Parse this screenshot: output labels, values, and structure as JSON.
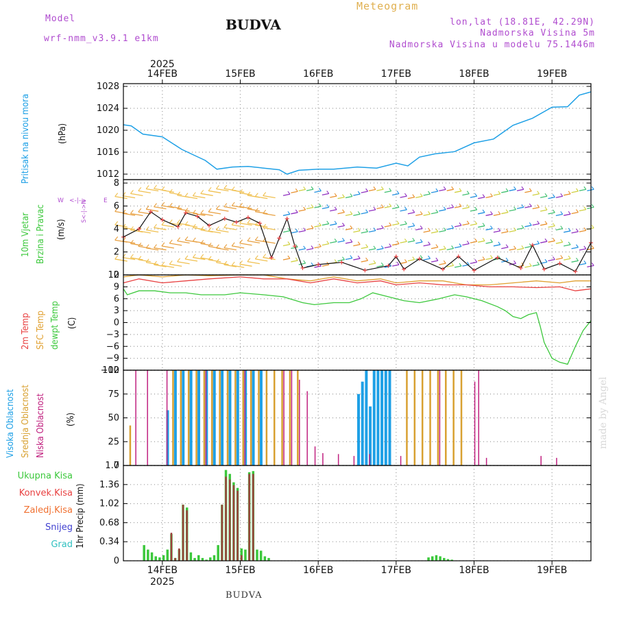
{
  "header": {
    "model_label": "Model",
    "model_name": "wrf-nmm_v3.9.1 e1km",
    "station": "BUDVA",
    "meteogram": "Meteogram",
    "lonlat": "lon,lat (18.81E, 42.29N)",
    "elevation": "Nadmorska Visina 5m",
    "model_elevation": "Nadmorska Visina u modelu 75.1446m"
  },
  "footer": {
    "station": "BUDVA",
    "credit": "made by Angel"
  },
  "colors": {
    "pressure": "#1ea0e6",
    "temp2m": "#e84040",
    "tsfc": "#e0a030",
    "dewpoint": "#3cc83c",
    "cloud_high": "#1ea0e6",
    "cloud_mid": "#d8a030",
    "cloud_low": "#c0207f",
    "precip_total": "#3cc83c",
    "precip_conv": "#a04040",
    "snow": "#4040d0",
    "graupel": "#30c0c0"
  },
  "panels": {
    "pressure": {
      "label": "Pritisak na nivou mora",
      "unit": "(hPa)"
    },
    "wind": {
      "label1": "10m Vjetar",
      "label2": "Brzina i Pravac",
      "unit": "(m/s)",
      "compass_w": "W",
      "compass_e": "E",
      "compass_arrows": "<-|->",
      "compass_n": "N",
      "compass_s": "S"
    },
    "temp": {
      "label_2m": "2m Temp",
      "label_sfc": "SFC Temp",
      "label_dew": "dewpt Temp",
      "unit": "(C)"
    },
    "cloud": {
      "label_high": "Visoka Oblacnost",
      "label_mid": "Srednja Oblacnost",
      "label_low": "Niska Oblacnost",
      "unit": "(%)"
    },
    "precip": {
      "unit": "1hr Precip (mm)",
      "legend": [
        "Ukupna Kisa",
        "Konvek.Kisa",
        "Zaledj.Kisa",
        "Snijeg",
        "Grad"
      ]
    }
  },
  "chart_data": [
    {
      "type": "line",
      "title": "Pritisak na nivou mora",
      "ylabel": "(hPa)",
      "ylim": [
        1011,
        1028.5
      ],
      "yticks": [
        1012,
        1016,
        1020,
        1024,
        1028
      ],
      "time_axis": {
        "year": "2025",
        "ticks": [
          "14FEB",
          "15FEB",
          "16FEB",
          "17FEB",
          "18FEB",
          "19FEB"
        ],
        "span_days": [
          13.5,
          19.5
        ]
      },
      "grid": true,
      "series": [
        {
          "name": "Pritisak na nivou mora",
          "x": [
            13.5,
            13.6,
            13.75,
            14.0,
            14.25,
            14.4,
            14.55,
            14.7,
            14.9,
            15.1,
            15.3,
            15.5,
            15.6,
            15.75,
            16.0,
            16.2,
            16.5,
            16.75,
            17.0,
            17.15,
            17.3,
            17.5,
            17.75,
            18.0,
            18.25,
            18.5,
            18.75,
            19.0,
            19.2,
            19.35,
            19.5
          ],
          "values": [
            1021,
            1020.8,
            1019.3,
            1018.8,
            1016.5,
            1015.5,
            1014.5,
            1012.9,
            1013.3,
            1013.4,
            1013.1,
            1012.8,
            1012,
            1012.7,
            1012.9,
            1012.9,
            1013.3,
            1013.1,
            1014,
            1013.5,
            1015.1,
            1015.7,
            1016.1,
            1017.7,
            1018.4,
            1020.9,
            1022.2,
            1024.2,
            1024.3,
            1026.4,
            1027
          ]
        }
      ]
    },
    {
      "type": "line",
      "title": "10m Vjetar Brzina i Pravac",
      "ylabel": "(m/s)",
      "ylim": [
        0,
        8.3
      ],
      "yticks": [
        0,
        2,
        4,
        6,
        8
      ],
      "grid": true,
      "series": [
        {
          "name": "10m Vjetar",
          "x": [
            13.5,
            13.7,
            13.85,
            14.0,
            14.2,
            14.3,
            14.45,
            14.6,
            14.8,
            14.95,
            15.1,
            15.25,
            15.4,
            15.5,
            15.6,
            15.7,
            15.8,
            16.0,
            16.3,
            16.6,
            16.9,
            17.0,
            17.1,
            17.3,
            17.6,
            17.8,
            18.0,
            18.3,
            18.6,
            18.75,
            18.9,
            19.1,
            19.3,
            19.5
          ],
          "values": [
            3.3,
            4.0,
            5.5,
            4.8,
            4.2,
            5.4,
            5.1,
            4.3,
            4.9,
            4.6,
            5.0,
            4.5,
            1.5,
            3.2,
            4.9,
            2.5,
            0.6,
            0.9,
            1.1,
            0.4,
            0.8,
            1.6,
            0.5,
            1.4,
            0.5,
            1.6,
            0.4,
            1.5,
            0.6,
            2.6,
            0.5,
            1.0,
            0.3,
            2.8
          ]
        }
      ]
    },
    {
      "type": "line",
      "ylabel": "(C)",
      "ylim": [
        -12,
        12
      ],
      "yticks": [
        -12,
        -9,
        -6,
        -3,
        0,
        3,
        6,
        9,
        12
      ],
      "grid": true,
      "series": [
        {
          "name": "2m Temp",
          "x": [
            13.5,
            13.7,
            14.0,
            14.3,
            14.6,
            15.0,
            15.3,
            15.6,
            15.9,
            16.2,
            16.5,
            16.8,
            17.0,
            17.3,
            17.6,
            17.9,
            18.2,
            18.5,
            18.8,
            19.1,
            19.3,
            19.5
          ],
          "values": [
            10,
            11,
            10,
            10.5,
            11,
            11.5,
            11,
            11,
            10,
            11,
            10,
            10.5,
            9.5,
            10,
            9.5,
            9.5,
            9,
            9,
            8.8,
            9,
            8,
            8.5
          ]
        },
        {
          "name": "SFC Temp",
          "x": [
            13.5,
            13.7,
            14.0,
            14.3,
            14.6,
            15.0,
            15.3,
            15.6,
            15.9,
            16.2,
            16.5,
            16.8,
            17.0,
            17.3,
            17.6,
            17.9,
            18.2,
            18.5,
            18.8,
            19.1,
            19.3,
            19.5
          ],
          "values": [
            11.5,
            12,
            11.5,
            12,
            11.8,
            12,
            12,
            11,
            10.5,
            11.5,
            10.5,
            11,
            10,
            10.5,
            10.5,
            9.5,
            9.5,
            10,
            10.5,
            10,
            10.5,
            10.5
          ]
        },
        {
          "name": "dewpt Temp",
          "x": [
            13.5,
            13.55,
            13.7,
            13.9,
            14.1,
            14.3,
            14.5,
            14.8,
            15.0,
            15.3,
            15.55,
            15.8,
            15.95,
            16.2,
            16.4,
            16.55,
            16.7,
            16.9,
            17.1,
            17.3,
            17.55,
            17.75,
            17.9,
            18.1,
            18.3,
            18.4,
            18.5,
            18.6,
            18.7,
            18.8,
            18.85,
            18.9,
            19.0,
            19.1,
            19.2,
            19.3,
            19.4,
            19.5
          ],
          "values": [
            8.5,
            7,
            8,
            8,
            7.5,
            7.5,
            7,
            7,
            7.5,
            7,
            6.5,
            5,
            4.5,
            5,
            5,
            6,
            7.5,
            6.5,
            5.5,
            5,
            6,
            7,
            6.5,
            5.5,
            4,
            3,
            1.5,
            1,
            2,
            2.5,
            -1,
            -5,
            -9,
            -10,
            -10.5,
            -6,
            -2,
            0.5
          ]
        }
      ]
    },
    {
      "type": "bar",
      "ylabel": "(%)",
      "ylim": [
        0,
        100
      ],
      "yticks": [
        0,
        25,
        50,
        75,
        100
      ],
      "grid": true,
      "series": [
        {
          "name": "Visoka Oblacnost",
          "x": [
            14.05,
            14.15,
            14.25,
            14.35,
            14.45,
            14.55,
            14.65,
            14.75,
            14.85,
            14.95,
            15.05,
            15.15,
            15.25,
            16.5,
            16.55,
            16.6,
            16.65,
            16.7,
            16.75,
            16.8,
            16.85,
            16.9
          ],
          "values": [
            58,
            100,
            100,
            100,
            100,
            100,
            100,
            100,
            100,
            100,
            100,
            100,
            100,
            75,
            88,
            100,
            62,
            100,
            100,
            100,
            100,
            100
          ]
        },
        {
          "name": "Srednja Oblacnost",
          "x": [
            13.55,
            14.1,
            14.2,
            14.3,
            14.4,
            14.5,
            14.6,
            14.7,
            14.8,
            14.9,
            15.0,
            15.1,
            15.2,
            15.3,
            15.4,
            15.5,
            15.6,
            15.7,
            17.1,
            17.2,
            17.3,
            17.4,
            17.5,
            17.6,
            17.7,
            17.8
          ],
          "values": [
            42,
            100,
            100,
            100,
            100,
            100,
            100,
            100,
            100,
            100,
            100,
            100,
            100,
            100,
            100,
            100,
            100,
            100,
            100,
            100,
            100,
            100,
            100,
            100,
            100,
            100
          ]
        },
        {
          "name": "Niska Oblacnost",
          "x": [
            13.6,
            13.75,
            14.0,
            14.5,
            15.0,
            15.5,
            15.6,
            15.7,
            15.8,
            15.9,
            16.0,
            16.2,
            16.4,
            16.6,
            17.0,
            17.5,
            17.95,
            18.0,
            18.1,
            18.8,
            19.0
          ],
          "values": [
            100,
            100,
            100,
            100,
            100,
            100,
            100,
            90,
            78,
            20,
            13,
            12,
            10,
            12,
            10,
            100,
            88,
            100,
            8,
            10,
            8
          ]
        }
      ]
    },
    {
      "type": "bar",
      "ylabel": "1hr Precip (mm)",
      "ylim": [
        0,
        1.7
      ],
      "yticks": [
        0,
        0.34,
        0.68,
        1.02,
        1.36,
        1.7
      ],
      "grid": true,
      "series": [
        {
          "name": "Ukupna Kisa",
          "x": [
            13.75,
            13.8,
            13.85,
            13.9,
            13.95,
            14.0,
            14.05,
            14.1,
            14.15,
            14.2,
            14.25,
            14.3,
            14.35,
            14.4,
            14.45,
            14.5,
            14.55,
            14.6,
            14.65,
            14.7,
            14.75,
            14.8,
            14.85,
            14.9,
            14.95,
            15.0,
            15.05,
            15.1,
            15.15,
            15.2,
            15.25,
            15.3,
            15.35,
            17.4,
            17.45,
            17.5,
            17.55,
            17.6,
            17.65,
            17.7
          ],
          "values": [
            0.28,
            0.2,
            0.15,
            0.08,
            0.06,
            0.1,
            0.2,
            0.48,
            0.05,
            0.2,
            1.0,
            0.95,
            0.15,
            0.05,
            0.1,
            0.05,
            0.02,
            0.06,
            0.1,
            0.28,
            1.0,
            1.62,
            1.55,
            1.4,
            1.3,
            0.22,
            0.2,
            1.58,
            1.6,
            0.2,
            0.18,
            0.08,
            0.05,
            0.06,
            0.08,
            0.1,
            0.08,
            0.05,
            0.03,
            0.02
          ]
        },
        {
          "name": "Konvek.Kisa",
          "x": [
            14.1,
            14.15,
            14.2,
            14.25,
            14.3,
            14.75,
            14.8,
            14.85,
            14.9,
            14.95,
            15.0,
            15.1,
            15.15
          ],
          "values": [
            0.5,
            0.05,
            0.22,
            1.0,
            0.9,
            1.0,
            1.5,
            1.45,
            1.35,
            1.25,
            0.1,
            1.55,
            1.55
          ]
        },
        {
          "name": "Zaledj.Kisa",
          "values": []
        },
        {
          "name": "Snijeg",
          "values": []
        },
        {
          "name": "Grad",
          "values": []
        }
      ]
    }
  ]
}
